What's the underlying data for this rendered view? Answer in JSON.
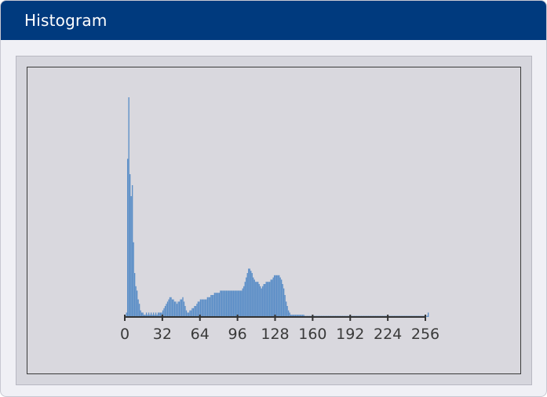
{
  "window": {
    "title": "Histogram"
  },
  "chart_data": {
    "type": "bar",
    "title": "",
    "xlabel": "",
    "ylabel": "",
    "xlim": [
      0,
      256
    ],
    "ylim": [
      0,
      100
    ],
    "x_ticks": [
      0,
      32,
      64,
      96,
      128,
      160,
      192,
      224,
      256
    ],
    "grid": false,
    "legend": "none",
    "bar_color": "#5b8ec7",
    "bin_width": 1,
    "values": [
      0,
      2,
      72,
      100,
      65,
      55,
      60,
      34,
      20,
      14,
      12,
      8,
      6,
      3,
      2,
      2,
      1,
      1,
      2,
      1,
      2,
      1,
      2,
      1,
      2,
      1,
      2,
      1,
      2,
      2,
      2,
      2,
      3,
      4,
      5,
      6,
      7,
      8,
      9,
      9,
      8,
      8,
      7,
      7,
      6,
      7,
      7,
      8,
      8,
      9,
      7,
      5,
      3,
      2,
      2,
      3,
      3,
      4,
      4,
      5,
      5,
      6,
      7,
      7,
      8,
      8,
      8,
      8,
      8,
      8,
      9,
      9,
      9,
      10,
      10,
      10,
      11,
      11,
      11,
      11,
      11,
      12,
      12,
      12,
      12,
      12,
      12,
      12,
      12,
      12,
      12,
      12,
      12,
      12,
      12,
      12,
      12,
      12,
      12,
      12,
      13,
      14,
      16,
      18,
      20,
      22,
      22,
      21,
      20,
      18,
      17,
      16,
      16,
      16,
      15,
      14,
      13,
      14,
      15,
      15,
      16,
      16,
      16,
      16,
      17,
      17,
      18,
      19,
      19,
      19,
      19,
      19,
      18,
      17,
      15,
      13,
      10,
      7,
      5,
      3,
      2,
      1,
      1,
      1,
      1,
      1,
      1,
      1,
      1,
      1,
      1,
      1,
      1,
      0.5,
      0.5,
      0.5,
      0.5,
      0.5,
      0.5,
      0.5,
      0.5,
      0.5,
      0.5,
      0.5,
      0.5,
      0.5,
      0.5,
      0.5,
      0.5,
      0.5,
      0.5,
      0.5,
      0.5,
      0.5,
      0.5,
      0.5,
      0.5,
      0.5,
      0.5,
      0.5,
      0.5,
      0.5,
      0.5,
      0.5,
      0.5,
      0.5,
      0.5,
      0.5,
      0.5,
      0.5,
      0.5,
      0.5,
      0.5,
      0.5,
      0.5,
      0.5,
      0.5,
      0.5,
      0.5,
      0.5,
      0.5,
      0.5,
      0.5,
      0.5,
      0.5,
      0.5,
      0.5,
      0.5,
      0.5,
      0.5,
      0.5,
      0.5,
      0.5,
      0.5,
      0.5,
      0.5,
      0.5,
      0.5,
      0.5,
      0.5,
      0.5,
      0.5,
      0.5,
      0.5,
      0.5,
      0.5,
      0.5,
      0.5,
      0.5,
      0.5,
      0.5,
      0.5,
      0.5,
      0.5,
      0.5,
      0.5,
      0.5,
      0.5,
      0.5,
      0.5,
      0.5,
      0.5,
      0.5,
      0.5,
      0.5,
      0.5,
      0.5,
      0.5,
      0.5,
      0.5,
      0.5,
      0.5,
      0.5,
      0.5,
      0.5,
      0.5,
      0.5,
      0.5,
      2
    ]
  }
}
